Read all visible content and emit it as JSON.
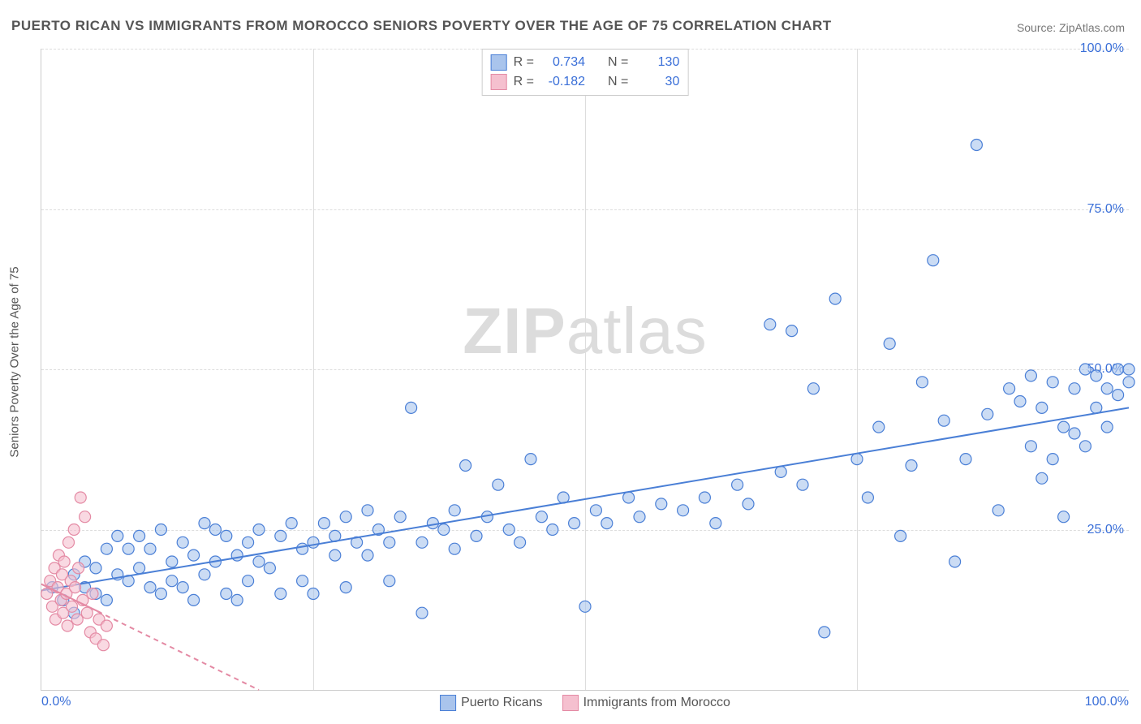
{
  "title": "PUERTO RICAN VS IMMIGRANTS FROM MOROCCO SENIORS POVERTY OVER THE AGE OF 75 CORRELATION CHART",
  "source": "Source: ZipAtlas.com",
  "watermark": "ZIPatlas",
  "ylabel": "Seniors Poverty Over the Age of 75",
  "chart": {
    "type": "scatter",
    "xlim": [
      0,
      100
    ],
    "ylim": [
      0,
      100
    ],
    "yticks": [
      25.0,
      50.0,
      75.0,
      100.0
    ],
    "ytick_labels": [
      "25.0%",
      "50.0%",
      "75.0%",
      "100.0%"
    ],
    "xticks_minor": [
      25,
      50,
      75
    ],
    "xtick_labels": [
      "0.0%",
      "100.0%"
    ],
    "xtick_positions": [
      0,
      100
    ],
    "grid_color": "#dddddd",
    "axis_color": "#cccccc",
    "background_color": "#ffffff",
    "tick_label_color": "#3a6fd8",
    "tick_fontsize": 16,
    "label_fontsize": 15,
    "marker_radius": 7,
    "marker_stroke_width": 1.2,
    "marker_fill_opacity": 0.25,
    "trend_line_width": 2,
    "series": [
      {
        "name": "Puerto Ricans",
        "color_stroke": "#4a7fd6",
        "color_fill": "#a9c4ec",
        "R": "0.734",
        "N": "130",
        "trend": {
          "x1": 0,
          "y1": 15.5,
          "x2": 100,
          "y2": 44.0,
          "dashed": false
        },
        "points": [
          [
            1,
            16
          ],
          [
            2,
            14
          ],
          [
            3,
            18
          ],
          [
            3,
            12
          ],
          [
            4,
            16
          ],
          [
            4,
            20
          ],
          [
            5,
            19
          ],
          [
            5,
            15
          ],
          [
            6,
            14
          ],
          [
            6,
            22
          ],
          [
            7,
            24
          ],
          [
            7,
            18
          ],
          [
            8,
            22
          ],
          [
            8,
            17
          ],
          [
            9,
            19
          ],
          [
            9,
            24
          ],
          [
            10,
            22
          ],
          [
            10,
            16
          ],
          [
            11,
            15
          ],
          [
            11,
            25
          ],
          [
            12,
            20
          ],
          [
            12,
            17
          ],
          [
            13,
            23
          ],
          [
            13,
            16
          ],
          [
            14,
            21
          ],
          [
            14,
            14
          ],
          [
            15,
            26
          ],
          [
            15,
            18
          ],
          [
            16,
            20
          ],
          [
            16,
            25
          ],
          [
            17,
            24
          ],
          [
            17,
            15
          ],
          [
            18,
            21
          ],
          [
            18,
            14
          ],
          [
            19,
            23
          ],
          [
            19,
            17
          ],
          [
            20,
            25
          ],
          [
            20,
            20
          ],
          [
            21,
            19
          ],
          [
            22,
            24
          ],
          [
            22,
            15
          ],
          [
            23,
            26
          ],
          [
            24,
            22
          ],
          [
            24,
            17
          ],
          [
            25,
            23
          ],
          [
            25,
            15
          ],
          [
            26,
            26
          ],
          [
            27,
            21
          ],
          [
            27,
            24
          ],
          [
            28,
            16
          ],
          [
            28,
            27
          ],
          [
            29,
            23
          ],
          [
            30,
            21
          ],
          [
            30,
            28
          ],
          [
            31,
            25
          ],
          [
            32,
            23
          ],
          [
            32,
            17
          ],
          [
            33,
            27
          ],
          [
            34,
            44
          ],
          [
            35,
            23
          ],
          [
            35,
            12
          ],
          [
            36,
            26
          ],
          [
            37,
            25
          ],
          [
            38,
            22
          ],
          [
            38,
            28
          ],
          [
            39,
            35
          ],
          [
            40,
            24
          ],
          [
            41,
            27
          ],
          [
            42,
            32
          ],
          [
            43,
            25
          ],
          [
            44,
            23
          ],
          [
            45,
            36
          ],
          [
            46,
            27
          ],
          [
            47,
            25
          ],
          [
            48,
            30
          ],
          [
            49,
            26
          ],
          [
            50,
            13
          ],
          [
            51,
            28
          ],
          [
            52,
            26
          ],
          [
            54,
            30
          ],
          [
            55,
            27
          ],
          [
            57,
            29
          ],
          [
            59,
            28
          ],
          [
            61,
            30
          ],
          [
            62,
            26
          ],
          [
            64,
            32
          ],
          [
            65,
            29
          ],
          [
            67,
            57
          ],
          [
            68,
            34
          ],
          [
            69,
            56
          ],
          [
            70,
            32
          ],
          [
            71,
            47
          ],
          [
            72,
            9
          ],
          [
            73,
            61
          ],
          [
            75,
            36
          ],
          [
            76,
            30
          ],
          [
            77,
            41
          ],
          [
            78,
            54
          ],
          [
            79,
            24
          ],
          [
            80,
            35
          ],
          [
            81,
            48
          ],
          [
            82,
            67
          ],
          [
            83,
            42
          ],
          [
            84,
            20
          ],
          [
            85,
            36
          ],
          [
            86,
            85
          ],
          [
            87,
            43
          ],
          [
            88,
            28
          ],
          [
            89,
            47
          ],
          [
            90,
            45
          ],
          [
            91,
            38
          ],
          [
            91,
            49
          ],
          [
            92,
            33
          ],
          [
            92,
            44
          ],
          [
            93,
            48
          ],
          [
            93,
            36
          ],
          [
            94,
            41
          ],
          [
            94,
            27
          ],
          [
            95,
            47
          ],
          [
            95,
            40
          ],
          [
            96,
            38
          ],
          [
            96,
            50
          ],
          [
            97,
            44
          ],
          [
            97,
            49
          ],
          [
            98,
            47
          ],
          [
            98,
            41
          ],
          [
            99,
            50
          ],
          [
            99,
            46
          ],
          [
            100,
            48
          ],
          [
            100,
            50
          ]
        ]
      },
      {
        "name": "Immigrants from Morocco",
        "color_stroke": "#e48aa4",
        "color_fill": "#f5c0cf",
        "R": "-0.182",
        "N": "30",
        "trend": {
          "x1": 0,
          "y1": 16.5,
          "x2": 20,
          "y2": 0,
          "dashed": true
        },
        "trend_solid": {
          "x1": 0,
          "y1": 16.5,
          "x2": 5.5,
          "y2": 12.0
        },
        "points": [
          [
            0.5,
            15
          ],
          [
            0.8,
            17
          ],
          [
            1.0,
            13
          ],
          [
            1.2,
            19
          ],
          [
            1.3,
            11
          ],
          [
            1.5,
            16
          ],
          [
            1.6,
            21
          ],
          [
            1.8,
            14
          ],
          [
            1.9,
            18
          ],
          [
            2.0,
            12
          ],
          [
            2.1,
            20
          ],
          [
            2.3,
            15
          ],
          [
            2.4,
            10
          ],
          [
            2.5,
            23
          ],
          [
            2.7,
            17
          ],
          [
            2.8,
            13
          ],
          [
            3.0,
            25
          ],
          [
            3.1,
            16
          ],
          [
            3.3,
            11
          ],
          [
            3.4,
            19
          ],
          [
            3.6,
            30
          ],
          [
            3.8,
            14
          ],
          [
            4.0,
            27
          ],
          [
            4.2,
            12
          ],
          [
            4.5,
            9
          ],
          [
            4.7,
            15
          ],
          [
            5.0,
            8
          ],
          [
            5.3,
            11
          ],
          [
            5.7,
            7
          ],
          [
            6.0,
            10
          ]
        ]
      }
    ]
  },
  "legend": {
    "series1_label": "Puerto Ricans",
    "series2_label": "Immigrants from Morocco"
  },
  "stat_labels": {
    "R": "R =",
    "N": "N ="
  }
}
